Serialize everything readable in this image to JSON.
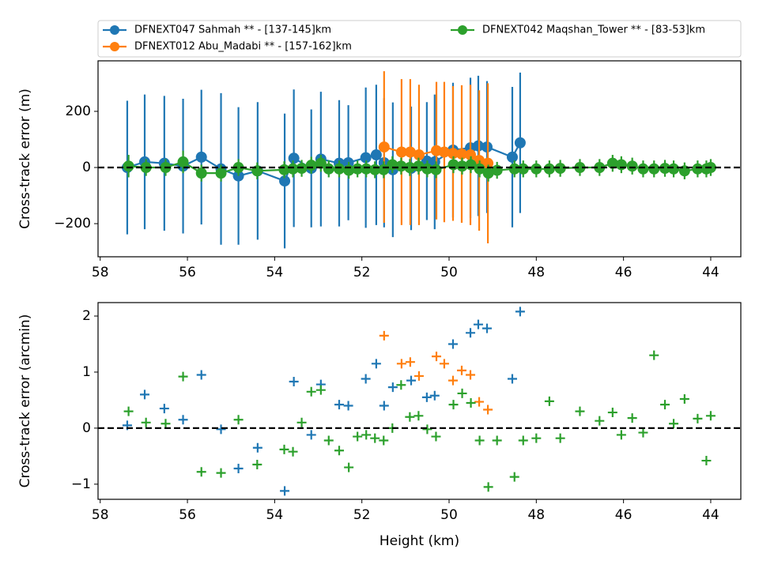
{
  "chart_data": [
    {
      "type": "errorbar-line",
      "ylabel": "Cross-track error (m)",
      "xlim": [
        58.05,
        43.31
      ],
      "xticks": [
        58,
        56,
        54,
        52,
        50,
        48,
        46,
        44
      ],
      "ylim": [
        -318,
        380
      ],
      "yticks": [
        {
          "value": -200,
          "label": "−200"
        },
        0,
        200
      ],
      "reference_line": 0,
      "legend": "top",
      "series": [
        {
          "name": "DFNEXT047 Sahmah **  - [137-145]km",
          "color": "#1f77b4",
          "x": [
            57.38,
            56.98,
            56.53,
            56.1,
            55.68,
            55.23,
            54.83,
            54.39,
            53.77,
            53.56,
            53.16,
            52.94,
            52.52,
            52.31,
            51.91,
            51.67,
            51.49,
            51.29,
            50.87,
            50.51,
            50.33,
            49.91,
            49.51,
            49.33,
            49.13,
            48.55,
            48.37
          ],
          "values": [
            0,
            20,
            15,
            5,
            37,
            -5,
            -30,
            -12,
            -48,
            33,
            -3,
            30,
            15,
            17,
            35,
            45,
            17,
            -8,
            -3,
            23,
            20,
            62,
            70,
            77,
            73,
            37,
            88
          ],
          "errors": [
            238,
            240,
            240,
            240,
            240,
            270,
            245,
            245,
            240,
            245,
            210,
            240,
            225,
            205,
            250,
            250,
            230,
            240,
            220,
            210,
            240,
            240,
            250,
            250,
            235,
            250,
            250
          ]
        },
        {
          "name": "DFNEXT012 Abu_Madabi **  - [157-162]km",
          "color": "#ff7f0e",
          "x": [
            51.49,
            51.09,
            50.89,
            50.69,
            50.29,
            50.11,
            49.91,
            49.71,
            49.51,
            49.31,
            49.11
          ],
          "values": [
            73,
            55,
            55,
            45,
            60,
            55,
            50,
            48,
            45,
            25,
            15
          ],
          "errors": [
            270,
            260,
            260,
            250,
            245,
            250,
            240,
            245,
            250,
            250,
            285
          ]
        },
        {
          "name": "DFNEXT042 Maqshan_Tower **  - [83-53]km",
          "color": "#2ca02c",
          "x": [
            57.35,
            56.95,
            56.5,
            56.1,
            55.68,
            55.23,
            54.83,
            54.4,
            53.78,
            53.58,
            53.38,
            53.16,
            52.94,
            52.76,
            52.52,
            52.3,
            52.1,
            51.9,
            51.7,
            51.5,
            51.3,
            51.1,
            50.9,
            50.7,
            50.5,
            50.3,
            49.9,
            49.7,
            49.5,
            49.3,
            49.1,
            48.9,
            48.5,
            48.3,
            48.0,
            47.7,
            47.45,
            47.0,
            46.55,
            46.25,
            46.05,
            45.8,
            45.55,
            45.3,
            45.05,
            44.85,
            44.6,
            44.3,
            44.1,
            44.0
          ],
          "values": [
            5,
            0,
            0,
            20,
            -20,
            -20,
            0,
            -12,
            -8,
            -5,
            -3,
            8,
            15,
            -5,
            -5,
            -10,
            -5,
            -5,
            -8,
            -8,
            10,
            5,
            0,
            5,
            -5,
            -8,
            10,
            5,
            10,
            -5,
            -20,
            -10,
            -5,
            -5,
            -5,
            -5,
            -3,
            0,
            0,
            15,
            10,
            5,
            -5,
            -5,
            -3,
            -5,
            -12,
            -5,
            -5,
            0
          ],
          "errors": [
            40,
            30,
            30,
            40,
            30,
            30,
            30,
            30,
            30,
            30,
            30,
            30,
            30,
            30,
            30,
            30,
            30,
            30,
            30,
            30,
            30,
            30,
            30,
            30,
            30,
            30,
            30,
            30,
            30,
            30,
            30,
            30,
            30,
            30,
            30,
            30,
            30,
            30,
            30,
            30,
            30,
            30,
            30,
            30,
            30,
            30,
            30,
            30,
            30,
            30
          ]
        }
      ]
    },
    {
      "type": "scatter",
      "ylabel": "Cross-track error (arcmin)",
      "xlabel": "Height (km)",
      "xlim": [
        58.05,
        43.31
      ],
      "xticks": [
        58,
        56,
        54,
        52,
        50,
        48,
        46,
        44
      ],
      "ylim": [
        -1.27,
        2.24
      ],
      "yticks": [
        {
          "value": -1,
          "label": "−1"
        },
        0,
        1,
        2
      ],
      "reference_line": 0,
      "series": [
        {
          "color": "#1f77b4",
          "x": [
            57.38,
            56.98,
            56.53,
            56.1,
            55.68,
            55.23,
            54.83,
            54.39,
            53.77,
            53.56,
            53.16,
            52.94,
            52.52,
            52.31,
            51.91,
            51.67,
            51.49,
            51.29,
            50.87,
            50.51,
            50.33,
            49.91,
            49.51,
            49.33,
            49.13,
            48.55,
            48.37
          ],
          "values": [
            0.05,
            0.6,
            0.35,
            0.15,
            0.95,
            -0.02,
            -0.72,
            -0.35,
            -1.12,
            0.83,
            -0.12,
            0.78,
            0.42,
            0.4,
            0.88,
            1.15,
            0.4,
            0.73,
            0.85,
            0.55,
            0.58,
            1.5,
            1.7,
            1.85,
            1.78,
            0.88,
            2.08
          ]
        },
        {
          "color": "#ff7f0e",
          "x": [
            51.49,
            51.09,
            50.89,
            50.69,
            50.29,
            50.11,
            49.91,
            49.71,
            49.51,
            49.31,
            49.11
          ],
          "values": [
            1.65,
            1.15,
            1.18,
            0.93,
            1.28,
            1.15,
            0.85,
            1.03,
            0.95,
            0.47,
            0.33
          ]
        },
        {
          "color": "#2ca02c",
          "x": [
            57.35,
            56.95,
            56.5,
            56.1,
            55.68,
            55.23,
            54.83,
            54.4,
            53.78,
            53.58,
            53.38,
            53.16,
            52.94,
            52.76,
            52.52,
            52.3,
            52.1,
            51.9,
            51.7,
            51.5,
            51.3,
            51.1,
            50.9,
            50.7,
            50.5,
            50.3,
            49.9,
            49.7,
            49.5,
            49.3,
            49.1,
            48.9,
            48.5,
            48.3,
            48.0,
            47.7,
            47.45,
            47.0,
            46.55,
            46.25,
            46.05,
            45.8,
            45.55,
            45.3,
            45.05,
            44.85,
            44.6,
            44.3,
            44.1,
            44.0
          ],
          "values": [
            0.3,
            0.1,
            0.08,
            0.92,
            -0.78,
            -0.8,
            0.15,
            -0.65,
            -0.38,
            -0.42,
            0.1,
            0.65,
            0.68,
            -0.22,
            -0.4,
            -0.7,
            -0.15,
            -0.12,
            -0.18,
            -0.22,
            0.0,
            0.77,
            0.2,
            0.22,
            -0.02,
            -0.15,
            0.42,
            0.62,
            0.45,
            -0.22,
            -1.05,
            -0.22,
            -0.87,
            -0.22,
            -0.18,
            0.48,
            -0.18,
            0.3,
            0.13,
            0.28,
            -0.12,
            0.18,
            -0.08,
            1.3,
            0.42,
            0.08,
            0.52,
            0.17,
            -0.58,
            0.22
          ]
        }
      ]
    }
  ]
}
